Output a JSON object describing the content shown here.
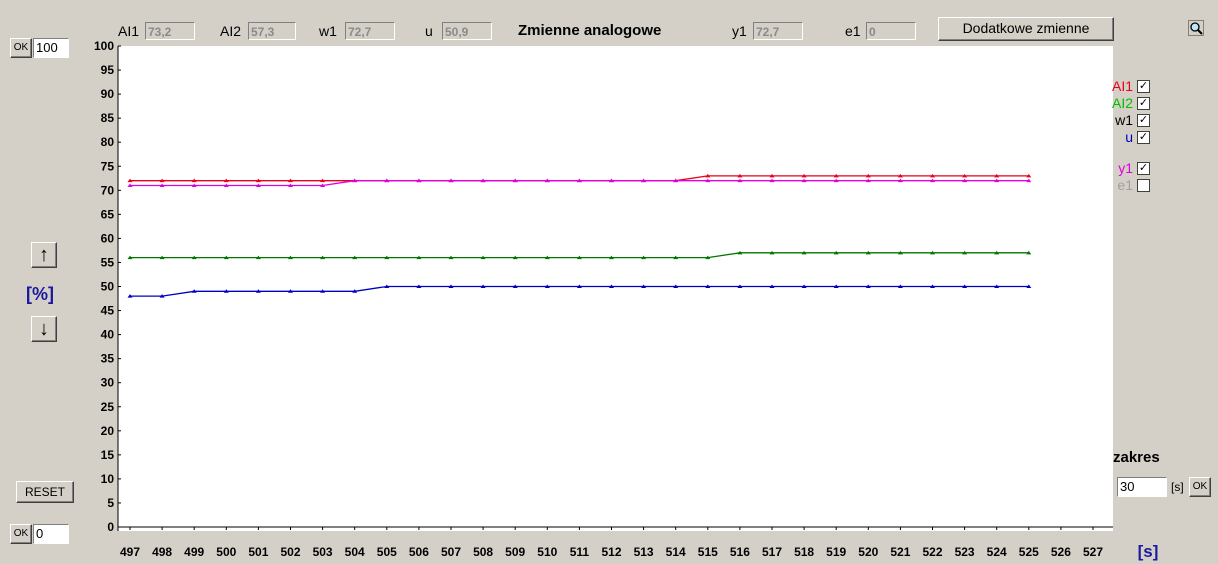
{
  "header": {
    "title": "Zmienne analogowe",
    "fields": [
      {
        "label": "AI1",
        "value": "73,2"
      },
      {
        "label": "AI2",
        "value": "57,3"
      },
      {
        "label": "w1",
        "value": "72,7"
      },
      {
        "label": "u",
        "value": "50,9"
      },
      {
        "label": "y1",
        "value": "72,7"
      },
      {
        "label": "e1",
        "value": "0"
      }
    ],
    "extra_button": "Dodatkowe zmienne",
    "zoom_icon": "magnifier-icon"
  },
  "left": {
    "ok_label": "OK",
    "ymax_value": "100",
    "ymin_value": "0",
    "unit_label": "[%]",
    "reset_label": "RESET",
    "up_icon": "arrow-up-icon",
    "down_icon": "arrow-down-icon"
  },
  "right": {
    "range_label": "zakres",
    "range_value": "30",
    "range_unit": "[s]",
    "ok_label": "OK"
  },
  "legend": [
    {
      "name": "AI1",
      "color": "#e8001c",
      "checked": true
    },
    {
      "name": "AI2",
      "color": "#00c000",
      "checked": true
    },
    {
      "name": "w1",
      "color": "#000000",
      "checked": true
    },
    {
      "name": "u",
      "color": "#0000c0",
      "checked": true
    },
    {
      "name": "y1",
      "color": "#e000e0",
      "checked": true
    },
    {
      "name": "e1",
      "color": "#a0a0a0",
      "checked": false
    }
  ],
  "chart_data": {
    "type": "line",
    "xlabel": "[s]",
    "ylabel": "[%]",
    "xlim": [
      497,
      527
    ],
    "ylim": [
      0,
      100
    ],
    "x_ticks": [
      497,
      498,
      499,
      500,
      501,
      502,
      503,
      504,
      505,
      506,
      507,
      508,
      509,
      510,
      511,
      512,
      513,
      514,
      515,
      516,
      517,
      518,
      519,
      520,
      521,
      522,
      523,
      524,
      525,
      526,
      527
    ],
    "y_ticks": [
      0,
      5,
      10,
      15,
      20,
      25,
      30,
      35,
      40,
      45,
      50,
      55,
      60,
      65,
      70,
      75,
      80,
      85,
      90,
      95,
      100
    ],
    "x": [
      497,
      498,
      499,
      500,
      501,
      502,
      503,
      504,
      505,
      506,
      507,
      508,
      509,
      510,
      511,
      512,
      513,
      514,
      515,
      516,
      517,
      518,
      519,
      520,
      521,
      522,
      523,
      524,
      525
    ],
    "series": [
      {
        "name": "AI1",
        "color": "#e8001c",
        "values": [
          72,
          72,
          72,
          72,
          72,
          72,
          72,
          72,
          72,
          72,
          72,
          72,
          72,
          72,
          72,
          72,
          72,
          72,
          73,
          73,
          73,
          73,
          73,
          73,
          73,
          73,
          73,
          73,
          73
        ]
      },
      {
        "name": "y1",
        "color": "#e000e0",
        "values": [
          71,
          71,
          71,
          71,
          71,
          71,
          71,
          72,
          72,
          72,
          72,
          72,
          72,
          72,
          72,
          72,
          72,
          72,
          72,
          72,
          72,
          72,
          72,
          72,
          72,
          72,
          72,
          72,
          72
        ]
      },
      {
        "name": "AI2",
        "color": "#007800",
        "values": [
          56,
          56,
          56,
          56,
          56,
          56,
          56,
          56,
          56,
          56,
          56,
          56,
          56,
          56,
          56,
          56,
          56,
          56,
          56,
          57,
          57,
          57,
          57,
          57,
          57,
          57,
          57,
          57,
          57
        ]
      },
      {
        "name": "u",
        "color": "#0000c0",
        "values": [
          48,
          48,
          49,
          49,
          49,
          49,
          49,
          49,
          50,
          50,
          50,
          50,
          50,
          50,
          50,
          50,
          50,
          50,
          50,
          50,
          50,
          50,
          50,
          50,
          50,
          50,
          50,
          50,
          50
        ]
      }
    ],
    "grid": false,
    "legend_position": "right"
  }
}
